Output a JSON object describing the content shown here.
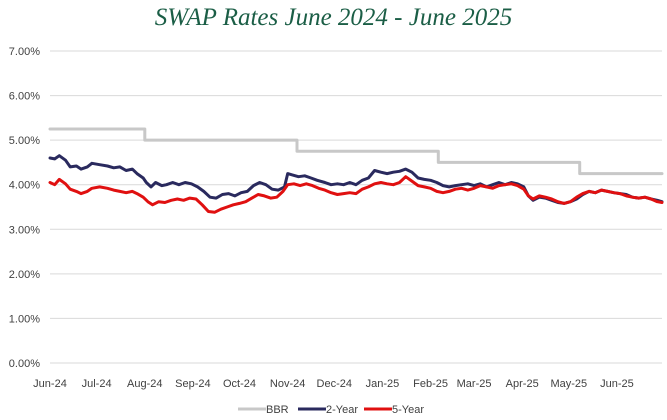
{
  "title": "SWAP Rates June 2024 - June 2025",
  "colors": {
    "title": "#1b5e46",
    "grid": "#d9d9d9",
    "axis_text": "#404040",
    "BBR": "#c8c8c8",
    "2-Year": "#2a2a5e",
    "5-Year": "#e01010"
  },
  "chart_data": {
    "type": "line",
    "title": "SWAP Rates June 2024 - June 2025",
    "xlabel": "",
    "ylabel": "",
    "ylim": [
      0,
      7
    ],
    "x_range": [
      "2024-06-01",
      "2025-06-30"
    ],
    "ytick_values": [
      0,
      1,
      2,
      3,
      4,
      5,
      6,
      7
    ],
    "ytick_labels": [
      "0.00%",
      "1.00%",
      "2.00%",
      "3.00%",
      "4.00%",
      "5.00%",
      "6.00%",
      "7.00%"
    ],
    "xtick_dates": [
      "2024-06-01",
      "2024-07-01",
      "2024-08-01",
      "2024-09-01",
      "2024-10-01",
      "2024-11-01",
      "2024-12-01",
      "2025-01-01",
      "2025-02-01",
      "2025-03-01",
      "2025-04-01",
      "2025-05-01",
      "2025-06-01"
    ],
    "xtick_labels": [
      "Jun-24",
      "Jul-24",
      "Aug-24",
      "Sep-24",
      "Oct-24",
      "Nov-24",
      "Dec-24",
      "Jan-25",
      "Feb-25",
      "Mar-25",
      "Apr-25",
      "May-25",
      "Jun-25"
    ],
    "grid": true,
    "legend_position": "bottom",
    "series": [
      {
        "name": "BBR",
        "step": true,
        "points": [
          [
            "2024-06-01",
            5.25
          ],
          [
            "2024-08-01",
            5.0
          ],
          [
            "2024-11-07",
            4.75
          ],
          [
            "2025-02-06",
            4.5
          ],
          [
            "2025-05-08",
            4.25
          ],
          [
            "2025-06-30",
            4.25
          ]
        ]
      },
      {
        "name": "2-Year",
        "step": false,
        "points": [
          [
            "2024-06-01",
            4.6
          ],
          [
            "2024-06-04",
            4.58
          ],
          [
            "2024-06-07",
            4.65
          ],
          [
            "2024-06-11",
            4.55
          ],
          [
            "2024-06-14",
            4.4
          ],
          [
            "2024-06-18",
            4.42
          ],
          [
            "2024-06-21",
            4.35
          ],
          [
            "2024-06-25",
            4.4
          ],
          [
            "2024-06-28",
            4.48
          ],
          [
            "2024-07-03",
            4.45
          ],
          [
            "2024-07-08",
            4.42
          ],
          [
            "2024-07-12",
            4.38
          ],
          [
            "2024-07-16",
            4.4
          ],
          [
            "2024-07-20",
            4.32
          ],
          [
            "2024-07-24",
            4.35
          ],
          [
            "2024-07-27",
            4.25
          ],
          [
            "2024-07-31",
            4.15
          ],
          [
            "2024-08-02",
            4.05
          ],
          [
            "2024-08-05",
            3.95
          ],
          [
            "2024-08-08",
            4.05
          ],
          [
            "2024-08-12",
            3.98
          ],
          [
            "2024-08-15",
            4.0
          ],
          [
            "2024-08-19",
            4.05
          ],
          [
            "2024-08-23",
            4.0
          ],
          [
            "2024-08-27",
            4.05
          ],
          [
            "2024-08-31",
            4.02
          ],
          [
            "2024-09-04",
            3.95
          ],
          [
            "2024-09-08",
            3.85
          ],
          [
            "2024-09-12",
            3.72
          ],
          [
            "2024-09-16",
            3.7
          ],
          [
            "2024-09-20",
            3.78
          ],
          [
            "2024-09-24",
            3.8
          ],
          [
            "2024-09-28",
            3.75
          ],
          [
            "2024-10-02",
            3.82
          ],
          [
            "2024-10-06",
            3.85
          ],
          [
            "2024-10-10",
            3.98
          ],
          [
            "2024-10-14",
            4.05
          ],
          [
            "2024-10-18",
            4.0
          ],
          [
            "2024-10-22",
            3.9
          ],
          [
            "2024-10-26",
            3.88
          ],
          [
            "2024-10-30",
            3.95
          ],
          [
            "2024-11-01",
            4.25
          ],
          [
            "2024-11-04",
            4.22
          ],
          [
            "2024-11-08",
            4.18
          ],
          [
            "2024-11-12",
            4.2
          ],
          [
            "2024-11-16",
            4.15
          ],
          [
            "2024-11-20",
            4.1
          ],
          [
            "2024-11-25",
            4.05
          ],
          [
            "2024-11-29",
            4.0
          ],
          [
            "2024-12-03",
            4.02
          ],
          [
            "2024-12-07",
            4.0
          ],
          [
            "2024-12-11",
            4.05
          ],
          [
            "2024-12-15",
            4.0
          ],
          [
            "2024-12-19",
            4.1
          ],
          [
            "2024-12-23",
            4.15
          ],
          [
            "2024-12-27",
            4.32
          ],
          [
            "2024-12-31",
            4.28
          ],
          [
            "2025-01-04",
            4.25
          ],
          [
            "2025-01-08",
            4.28
          ],
          [
            "2025-01-12",
            4.3
          ],
          [
            "2025-01-16",
            4.35
          ],
          [
            "2025-01-20",
            4.28
          ],
          [
            "2025-01-24",
            4.15
          ],
          [
            "2025-01-28",
            4.12
          ],
          [
            "2025-02-01",
            4.1
          ],
          [
            "2025-02-05",
            4.05
          ],
          [
            "2025-02-09",
            3.98
          ],
          [
            "2025-02-13",
            3.95
          ],
          [
            "2025-02-17",
            3.98
          ],
          [
            "2025-02-21",
            4.0
          ],
          [
            "2025-02-25",
            4.02
          ],
          [
            "2025-03-01",
            3.98
          ],
          [
            "2025-03-05",
            4.02
          ],
          [
            "2025-03-09",
            3.95
          ],
          [
            "2025-03-13",
            4.0
          ],
          [
            "2025-03-17",
            4.05
          ],
          [
            "2025-03-21",
            4.0
          ],
          [
            "2025-03-25",
            4.05
          ],
          [
            "2025-03-29",
            4.02
          ],
          [
            "2025-04-02",
            3.95
          ],
          [
            "2025-04-05",
            3.75
          ],
          [
            "2025-04-08",
            3.65
          ],
          [
            "2025-04-12",
            3.72
          ],
          [
            "2025-04-16",
            3.7
          ],
          [
            "2025-04-20",
            3.65
          ],
          [
            "2025-04-24",
            3.6
          ],
          [
            "2025-04-28",
            3.58
          ],
          [
            "2025-05-02",
            3.62
          ],
          [
            "2025-05-06",
            3.68
          ],
          [
            "2025-05-10",
            3.78
          ],
          [
            "2025-05-14",
            3.85
          ],
          [
            "2025-05-18",
            3.82
          ],
          [
            "2025-05-22",
            3.88
          ],
          [
            "2025-05-26",
            3.85
          ],
          [
            "2025-05-30",
            3.82
          ],
          [
            "2025-06-03",
            3.8
          ],
          [
            "2025-06-07",
            3.78
          ],
          [
            "2025-06-11",
            3.72
          ],
          [
            "2025-06-15",
            3.7
          ],
          [
            "2025-06-19",
            3.72
          ],
          [
            "2025-06-23",
            3.68
          ],
          [
            "2025-06-27",
            3.65
          ],
          [
            "2025-06-30",
            3.62
          ]
        ]
      },
      {
        "name": "5-Year",
        "step": false,
        "points": [
          [
            "2024-06-01",
            4.05
          ],
          [
            "2024-06-04",
            4.0
          ],
          [
            "2024-06-07",
            4.12
          ],
          [
            "2024-06-11",
            4.02
          ],
          [
            "2024-06-14",
            3.9
          ],
          [
            "2024-06-18",
            3.85
          ],
          [
            "2024-06-21",
            3.8
          ],
          [
            "2024-06-25",
            3.85
          ],
          [
            "2024-06-28",
            3.92
          ],
          [
            "2024-07-03",
            3.95
          ],
          [
            "2024-07-08",
            3.92
          ],
          [
            "2024-07-12",
            3.88
          ],
          [
            "2024-07-16",
            3.85
          ],
          [
            "2024-07-20",
            3.82
          ],
          [
            "2024-07-24",
            3.85
          ],
          [
            "2024-07-27",
            3.8
          ],
          [
            "2024-07-31",
            3.72
          ],
          [
            "2024-08-03",
            3.62
          ],
          [
            "2024-08-06",
            3.55
          ],
          [
            "2024-08-10",
            3.62
          ],
          [
            "2024-08-14",
            3.6
          ],
          [
            "2024-08-18",
            3.65
          ],
          [
            "2024-08-22",
            3.68
          ],
          [
            "2024-08-26",
            3.65
          ],
          [
            "2024-08-30",
            3.7
          ],
          [
            "2024-09-03",
            3.68
          ],
          [
            "2024-09-07",
            3.55
          ],
          [
            "2024-09-11",
            3.4
          ],
          [
            "2024-09-15",
            3.38
          ],
          [
            "2024-09-19",
            3.45
          ],
          [
            "2024-09-23",
            3.5
          ],
          [
            "2024-09-27",
            3.55
          ],
          [
            "2024-10-01",
            3.58
          ],
          [
            "2024-10-05",
            3.62
          ],
          [
            "2024-10-09",
            3.7
          ],
          [
            "2024-10-13",
            3.78
          ],
          [
            "2024-10-17",
            3.75
          ],
          [
            "2024-10-21",
            3.7
          ],
          [
            "2024-10-25",
            3.72
          ],
          [
            "2024-10-29",
            3.85
          ],
          [
            "2024-11-01",
            4.0
          ],
          [
            "2024-11-05",
            4.02
          ],
          [
            "2024-11-09",
            3.98
          ],
          [
            "2024-11-13",
            4.02
          ],
          [
            "2024-11-17",
            3.98
          ],
          [
            "2024-11-21",
            3.92
          ],
          [
            "2024-11-25",
            3.88
          ],
          [
            "2024-11-29",
            3.82
          ],
          [
            "2024-12-03",
            3.78
          ],
          [
            "2024-12-07",
            3.8
          ],
          [
            "2024-12-11",
            3.82
          ],
          [
            "2024-12-15",
            3.8
          ],
          [
            "2024-12-19",
            3.9
          ],
          [
            "2024-12-23",
            3.95
          ],
          [
            "2024-12-27",
            4.02
          ],
          [
            "2024-12-31",
            4.05
          ],
          [
            "2025-01-04",
            4.02
          ],
          [
            "2025-01-08",
            4.0
          ],
          [
            "2025-01-12",
            4.05
          ],
          [
            "2025-01-16",
            4.18
          ],
          [
            "2025-01-20",
            4.08
          ],
          [
            "2025-01-24",
            3.98
          ],
          [
            "2025-01-28",
            3.95
          ],
          [
            "2025-02-01",
            3.92
          ],
          [
            "2025-02-05",
            3.85
          ],
          [
            "2025-02-09",
            3.82
          ],
          [
            "2025-02-13",
            3.85
          ],
          [
            "2025-02-17",
            3.9
          ],
          [
            "2025-02-21",
            3.92
          ],
          [
            "2025-02-25",
            3.88
          ],
          [
            "2025-03-01",
            3.92
          ],
          [
            "2025-03-05",
            3.98
          ],
          [
            "2025-03-09",
            3.95
          ],
          [
            "2025-03-13",
            3.92
          ],
          [
            "2025-03-17",
            3.98
          ],
          [
            "2025-03-21",
            4.0
          ],
          [
            "2025-03-25",
            4.02
          ],
          [
            "2025-03-29",
            3.98
          ],
          [
            "2025-04-02",
            3.9
          ],
          [
            "2025-04-05",
            3.75
          ],
          [
            "2025-04-08",
            3.68
          ],
          [
            "2025-04-12",
            3.75
          ],
          [
            "2025-04-16",
            3.72
          ],
          [
            "2025-04-20",
            3.68
          ],
          [
            "2025-04-24",
            3.62
          ],
          [
            "2025-04-28",
            3.58
          ],
          [
            "2025-05-02",
            3.62
          ],
          [
            "2025-05-06",
            3.72
          ],
          [
            "2025-05-10",
            3.8
          ],
          [
            "2025-05-14",
            3.85
          ],
          [
            "2025-05-18",
            3.82
          ],
          [
            "2025-05-22",
            3.88
          ],
          [
            "2025-05-26",
            3.85
          ],
          [
            "2025-05-30",
            3.82
          ],
          [
            "2025-06-03",
            3.8
          ],
          [
            "2025-06-07",
            3.75
          ],
          [
            "2025-06-11",
            3.72
          ],
          [
            "2025-06-15",
            3.7
          ],
          [
            "2025-06-19",
            3.72
          ],
          [
            "2025-06-23",
            3.68
          ],
          [
            "2025-06-27",
            3.62
          ],
          [
            "2025-06-30",
            3.6
          ]
        ]
      }
    ]
  }
}
